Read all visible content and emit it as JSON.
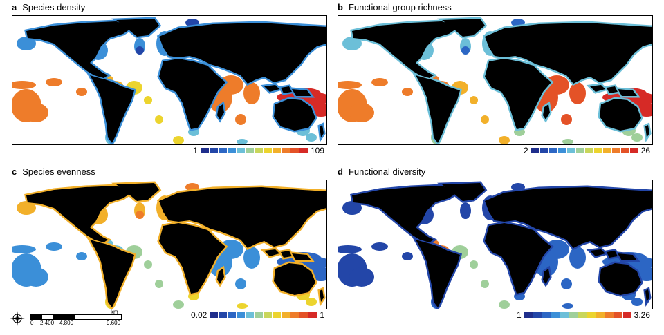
{
  "colormap": [
    "#1f2e8c",
    "#2346a8",
    "#2c66c4",
    "#3b8fd8",
    "#6cbfd8",
    "#9fcf9a",
    "#c9d65a",
    "#ecd42e",
    "#f2b02a",
    "#ee7c2a",
    "#e45227",
    "#d62a26"
  ],
  "land_color": "#000000",
  "panels": [
    {
      "letter": "a",
      "title": "Species density",
      "legend": {
        "min": "1",
        "max": "109"
      },
      "levels": {
        "tropical_indo_pacific": 11,
        "tropical_pacific": 9,
        "caribbean": 8,
        "tropical_atlantic": 7,
        "indian_ocean": 9,
        "north_temperate": 3,
        "south_temperate": 4,
        "arctic": 1
      }
    },
    {
      "letter": "b",
      "title": "Functional group richness",
      "legend": {
        "min": "2",
        "max": "26"
      },
      "levels": {
        "tropical_indo_pacific": 11,
        "tropical_pacific": 9,
        "caribbean": 9,
        "tropical_atlantic": 8,
        "indian_ocean": 10,
        "north_temperate": 4,
        "south_temperate": 5,
        "arctic": 2
      }
    },
    {
      "letter": "c",
      "title": "Species evenness",
      "legend": {
        "min": "0.02",
        "max": "1"
      },
      "levels": {
        "tropical_indo_pacific": 2,
        "tropical_pacific": 3,
        "caribbean": 4,
        "tropical_atlantic": 5,
        "indian_ocean": 3,
        "north_temperate": 8,
        "south_temperate": 7,
        "arctic": 9
      }
    },
    {
      "letter": "d",
      "title": "Functional diversity",
      "legend": {
        "min": "1",
        "max": "3.26"
      },
      "levels": {
        "tropical_indo_pacific": 2,
        "tropical_pacific": 1,
        "caribbean": 9,
        "tropical_atlantic": 5,
        "indian_ocean": 2,
        "north_temperate": 1,
        "south_temperate": 2,
        "arctic": 1
      }
    }
  ],
  "scalebar": {
    "unit": "km",
    "ticks": [
      "0",
      "2,400",
      "4,800",
      "9,600"
    ]
  }
}
